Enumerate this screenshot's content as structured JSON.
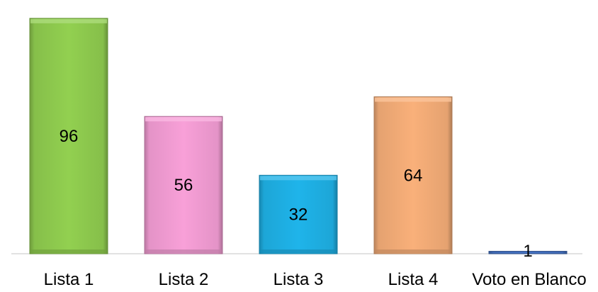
{
  "chart_data": {
    "type": "bar",
    "title": "",
    "xlabel": "",
    "ylabel": "",
    "categories": [
      "Lista 1",
      "Lista 2",
      "Lista 3",
      "Lista 4",
      "Voto en Blanco"
    ],
    "values": [
      96,
      56,
      32,
      64,
      1
    ],
    "ylim": [
      0,
      100
    ],
    "grid": false,
    "legend": "none",
    "data_labels": [
      "96",
      "56",
      "32",
      "64",
      "1"
    ],
    "colors": [
      "#92D050",
      "#F8A0D8",
      "#1FB4EA",
      "#F9B07A",
      "#4472C4"
    ]
  }
}
